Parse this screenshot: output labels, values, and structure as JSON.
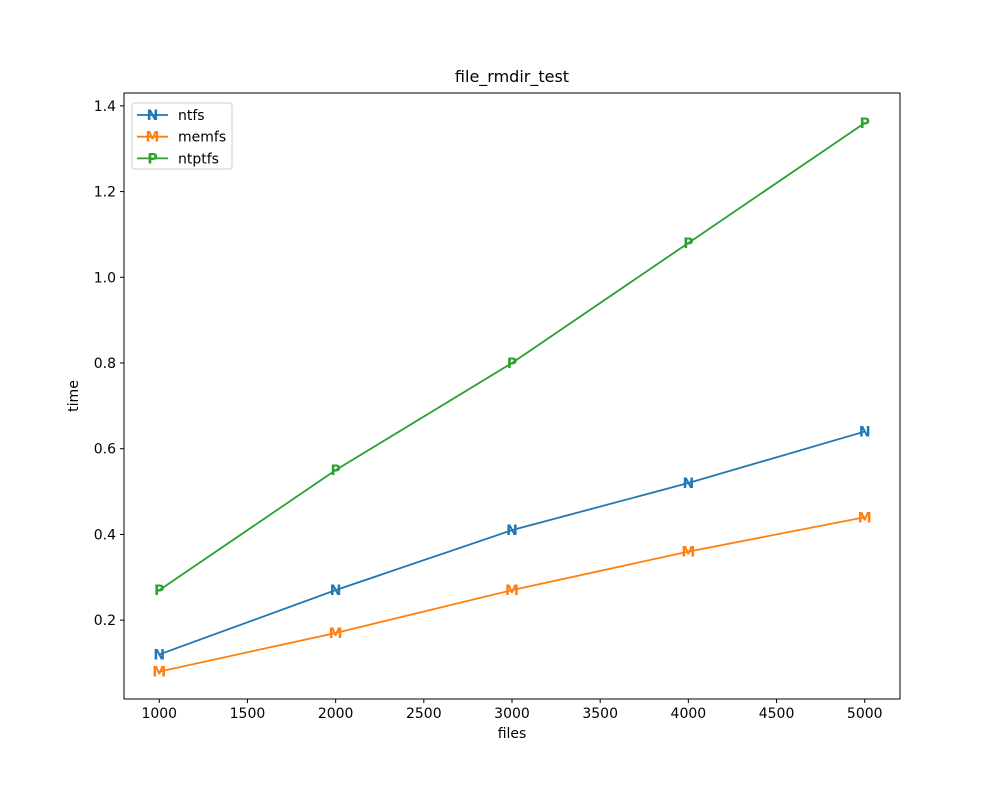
{
  "figure": {
    "background": "#ffffff"
  },
  "chart_data": {
    "type": "line",
    "title": "file_rmdir_test",
    "xlabel": "files",
    "ylabel": "time",
    "x": [
      1000,
      2000,
      3000,
      4000,
      5000
    ],
    "series": [
      {
        "name": "ntfs",
        "marker": "N",
        "color": "#1f77b4",
        "values": [
          0.12,
          0.27,
          0.41,
          0.52,
          0.64
        ]
      },
      {
        "name": "memfs",
        "marker": "M",
        "color": "#ff7f0e",
        "values": [
          0.08,
          0.17,
          0.27,
          0.36,
          0.44
        ]
      },
      {
        "name": "ntptfs",
        "marker": "P",
        "color": "#2ca02c",
        "values": [
          0.27,
          0.55,
          0.8,
          1.08,
          1.36
        ]
      }
    ],
    "xticks": [
      1000,
      1500,
      2000,
      2500,
      3000,
      3500,
      4000,
      4500,
      5000
    ],
    "yticks": [
      0.2,
      0.4,
      0.6,
      0.8,
      1.0,
      1.2,
      1.4
    ],
    "xlim": [
      800,
      5200
    ],
    "ylim": [
      0.016,
      1.43
    ],
    "grid": false,
    "legend": {
      "position": "upper left",
      "entries": [
        "ntfs",
        "memfs",
        "ntptfs"
      ]
    },
    "axis_color": "#000000",
    "text_color": "#000000"
  }
}
